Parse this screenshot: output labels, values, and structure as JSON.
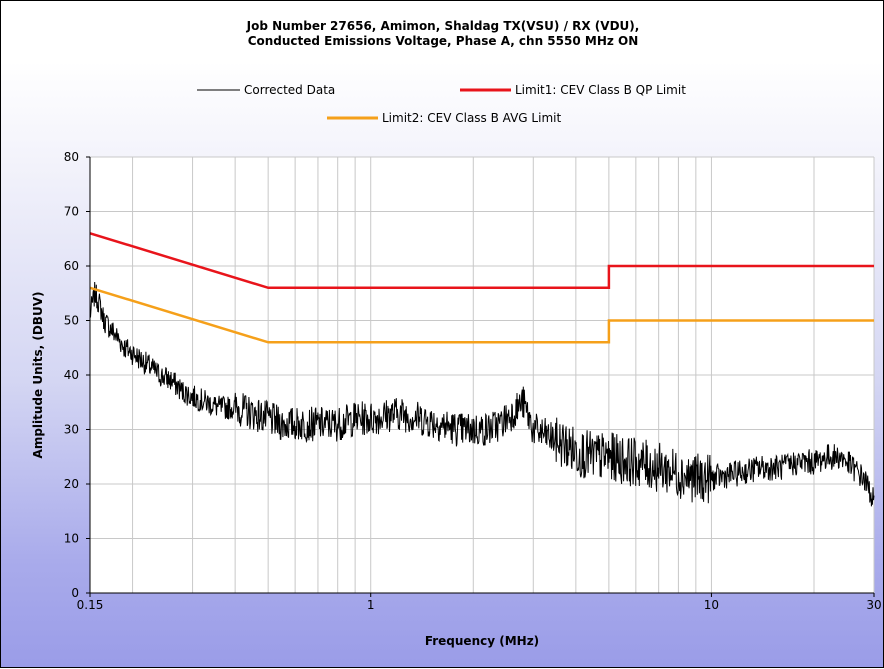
{
  "chart_data": {
    "type": "line",
    "title": [
      "Job Number 27656, Amimon, Shaldag TX(VSU) / RX (VDU),",
      "Conducted Emissions Voltage, Phase A, chn 5550 MHz ON"
    ],
    "xlabel": "Frequency (MHz)",
    "ylabel": "Amplitude Units, (DBUV)",
    "xscale": "log",
    "xlim": [
      0.15,
      30
    ],
    "ylim": [
      0,
      80
    ],
    "x_ticks": [
      0.15,
      1,
      10,
      30
    ],
    "x_tick_labels": [
      "0.15",
      "1",
      "10",
      "30"
    ],
    "y_ticks": [
      0,
      10,
      20,
      30,
      40,
      50,
      60,
      70,
      80
    ],
    "y_tick_labels": [
      "0",
      "10",
      "20",
      "30",
      "40",
      "50",
      "60",
      "70",
      "80"
    ],
    "grid": true,
    "legend_position": "top-center",
    "series": [
      {
        "name": "Corrected Data",
        "color": "#000000",
        "x": [
          0.15,
          0.155,
          0.16,
          0.165,
          0.17,
          0.18,
          0.19,
          0.2,
          0.22,
          0.24,
          0.26,
          0.28,
          0.3,
          0.33,
          0.36,
          0.4,
          0.45,
          0.5,
          0.55,
          0.6,
          0.7,
          0.8,
          0.9,
          1.0,
          1.2,
          1.4,
          1.6,
          1.8,
          2.0,
          2.2,
          2.4,
          2.6,
          2.8,
          3.0,
          3.5,
          4.0,
          4.5,
          5.0,
          6.0,
          7.0,
          8.0,
          9.0,
          10.0,
          12.0,
          14.0,
          16.0,
          18.0,
          20.0,
          22.0,
          24.0,
          26.0,
          28.0,
          30.0
        ],
        "y": [
          51,
          55,
          53,
          50,
          49,
          47,
          45,
          44,
          42,
          40,
          39,
          37,
          36,
          35,
          34,
          34,
          33,
          32,
          31,
          31,
          31,
          31,
          32,
          32,
          33,
          32,
          31,
          30,
          30,
          30,
          31,
          33,
          35,
          30,
          28,
          26,
          25,
          25,
          24,
          23,
          22,
          21,
          21,
          22,
          23,
          23,
          24,
          24,
          25,
          25,
          23,
          21,
          17
        ]
      },
      {
        "name": "Limit1: CEV Class B QP Limit",
        "color": "#e8141b",
        "x": [
          0.15,
          0.5,
          0.5,
          5,
          5,
          30
        ],
        "y": [
          66,
          56,
          56,
          56,
          60,
          60
        ]
      },
      {
        "name": "Limit2: CEV Class B AVG Limit",
        "color": "#f5a01a",
        "x": [
          0.15,
          0.5,
          0.5,
          5,
          5,
          30
        ],
        "y": [
          56,
          46,
          46,
          46,
          50,
          50
        ]
      }
    ]
  }
}
